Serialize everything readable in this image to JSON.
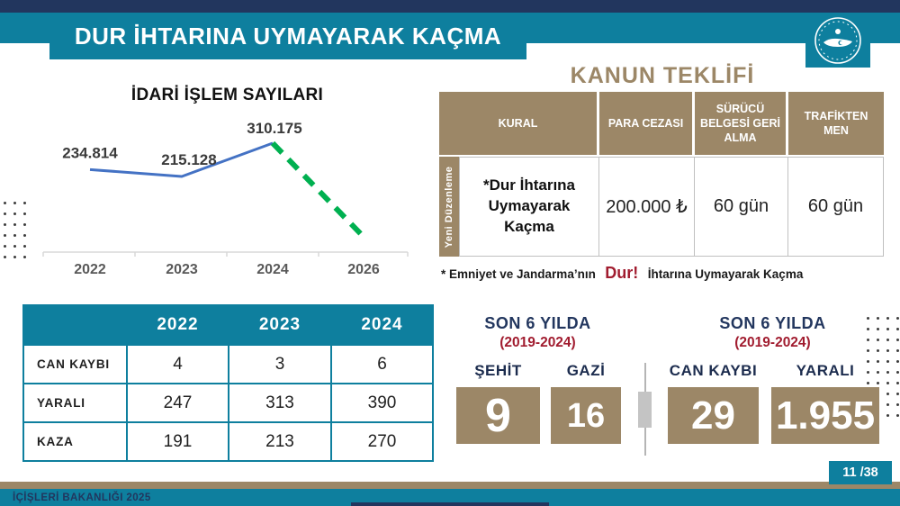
{
  "header": {
    "title": "DUR İHTARINA UYMAYARAK KAÇMA"
  },
  "chart_data": {
    "type": "line",
    "title": "İDARİ İŞLEM SAYILARI",
    "categories": [
      "2022",
      "2023",
      "2024",
      "2026"
    ],
    "series": [
      {
        "name": "İdari İşlem Sayısı",
        "values": [
          234814,
          215128,
          310175,
          null
        ],
        "color": "#4472c4"
      }
    ],
    "point_labels": [
      "234.814",
      "215.128",
      "310.175"
    ],
    "projection": {
      "from": "2024",
      "to": "2026",
      "style": "dashed",
      "color": "#00b050",
      "trend": "decreasing"
    },
    "xlabel": "",
    "ylabel": "",
    "grid": false,
    "legend": "none"
  },
  "law_table": {
    "title": "KANUN TEKLİFİ",
    "row_group_label": "Yeni Düzenleme",
    "columns": [
      "KURAL",
      "PARA CEZASI",
      "SÜRÜCÜ BELGESİ GERİ ALMA",
      "TRAFİKTEN MEN"
    ],
    "row": {
      "kural": "*Dur İhtarına Uymayarak Kaçma",
      "para_cezasi": "200.000 ₺",
      "surucu_belgesi_geri_alma": "60 gün",
      "trafikten_men": "60 gün"
    },
    "footnote": {
      "prefix": "* Emniyet ve Jandarma’nın",
      "highlight": "Dur!",
      "suffix": "İhtarına Uymayarak Kaçma"
    }
  },
  "casualty_table": {
    "columns": [
      "2022",
      "2023",
      "2024"
    ],
    "rows": [
      {
        "label": "CAN KAYBI",
        "values": [
          "4",
          "3",
          "6"
        ]
      },
      {
        "label": "YARALI",
        "values": [
          "247",
          "313",
          "390"
        ]
      },
      {
        "label": "KAZA",
        "values": [
          "191",
          "213",
          "270"
        ]
      }
    ]
  },
  "summary": {
    "left": {
      "title": "SON 6 YILDA",
      "subtitle": "(2019-2024)",
      "items": [
        {
          "label": "ŞEHİT",
          "value": "9"
        },
        {
          "label": "GAZİ",
          "value": "16"
        }
      ]
    },
    "right": {
      "title": "SON 6 YILDA",
      "subtitle": "(2019-2024)",
      "items": [
        {
          "label": "CAN KAYBI",
          "value": "29"
        },
        {
          "label": "YARALI",
          "value": "1.955"
        }
      ]
    }
  },
  "footer": {
    "ministry": "İÇİŞLERİ BAKANLIĞI 2025",
    "page": "11 /38"
  },
  "colors": {
    "navy": "#22365e",
    "teal": "#0e7f9e",
    "tan": "#9c8767",
    "red": "#a11c2f",
    "line_blue": "#4472c4",
    "projection_green": "#00b050"
  }
}
